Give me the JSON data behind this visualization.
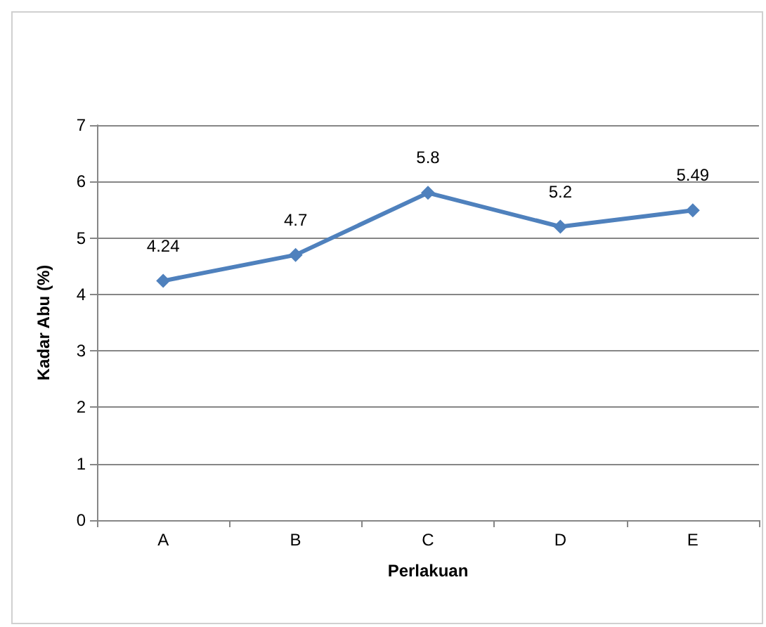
{
  "chart_data": {
    "type": "line",
    "xlabel": "Perlakuan",
    "ylabel": "Kadar Abu (%)",
    "categories": [
      "A",
      "B",
      "C",
      "D",
      "E"
    ],
    "series": [
      {
        "color": "#4f81bd",
        "values": [
          4.24,
          4.7,
          5.8,
          5.2,
          5.49
        ]
      }
    ],
    "ylim": [
      0,
      7
    ],
    "yticks": [
      0,
      1,
      2,
      3,
      4,
      5,
      6,
      7
    ],
    "grid": "y",
    "marker": "diamond",
    "line_style": "solid",
    "data_labels": true
  }
}
